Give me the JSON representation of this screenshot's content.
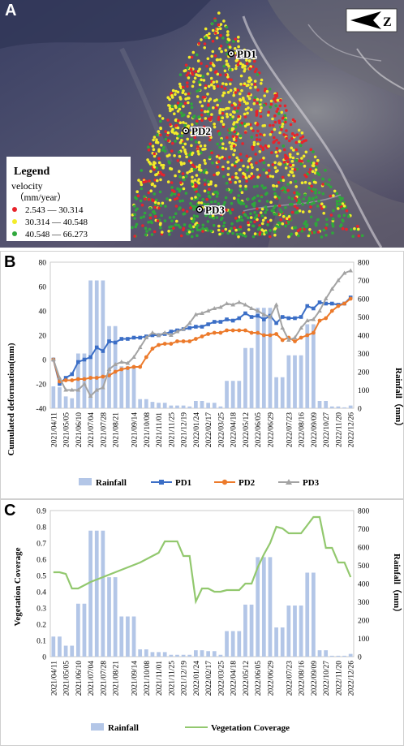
{
  "panels": {
    "a": {
      "letter": "A"
    },
    "b": {
      "letter": "B"
    },
    "c": {
      "letter": "C"
    }
  },
  "map": {
    "north_symbol": "Z",
    "points": [
      "PD1",
      "PD2",
      "PD3"
    ],
    "legend": {
      "title": "Legend",
      "subtitle1": "velocity",
      "subtitle2": "（mm/year）",
      "classes": [
        {
          "label": "2.543 — 30.314",
          "color": "#e8232b"
        },
        {
          "label": "30.314 — 40.548",
          "color": "#f3ec2a"
        },
        {
          "label": "40.548 — 66.273",
          "color": "#2fa83c"
        }
      ]
    }
  },
  "chart_data": [
    {
      "type": "bar+line",
      "ylabel": "Cumulated deformation(mm)",
      "y2label": "Rainfall（mm）",
      "ylim": [
        -40,
        80
      ],
      "y2lim": [
        0,
        800
      ],
      "yticks": [
        -40,
        -20,
        0,
        20,
        40,
        60,
        80
      ],
      "y2ticks": [
        0,
        100,
        200,
        300,
        400,
        500,
        600,
        700,
        800
      ],
      "xtick_labels": [
        "2021/04/11",
        "2021/05/05",
        "2021/06/10",
        "2021/07/04",
        "2021/07/28",
        "2021/08/21",
        "2021/09/14",
        "2021/10/08",
        "2021/11/01",
        "2021/11/25",
        "2021/12/19",
        "2022/01/24",
        "2022/02/17",
        "2022/03/25",
        "2022/04/18",
        "2022/05/12",
        "2022/06/05",
        "2022/06/29",
        "2022/07/23",
        "2022/08/16",
        "2022/09/09",
        "2022/10/27",
        "2022/11/20",
        "2022/12/26"
      ],
      "n_points": 49,
      "rainfall": [
        120,
        115,
        65,
        55,
        300,
        300,
        700,
        700,
        700,
        450,
        450,
        230,
        230,
        230,
        50,
        50,
        35,
        30,
        30,
        15,
        15,
        15,
        10,
        40,
        40,
        30,
        30,
        10,
        150,
        150,
        150,
        330,
        330,
        550,
        550,
        550,
        170,
        170,
        290,
        290,
        290,
        460,
        460,
        40,
        40,
        10,
        10,
        5,
        15
      ],
      "series": [
        {
          "name": "PD1",
          "color": "#3b6ec6",
          "marker": "square",
          "values": [
            0,
            -20,
            -15,
            -12,
            -2,
            0,
            2,
            10,
            7,
            15,
            14,
            17,
            17,
            18,
            18,
            19,
            20,
            20,
            21,
            23,
            24,
            25,
            26,
            27,
            27,
            29,
            31,
            31,
            33,
            32,
            34,
            38,
            35,
            36,
            33,
            36,
            30,
            35,
            34,
            34,
            35,
            44,
            42,
            47,
            46,
            46,
            45,
            46,
            51
          ]
        },
        {
          "name": "PD2",
          "color": "#ec7a2b",
          "marker": "circle",
          "values": [
            0,
            -18,
            -17,
            -17,
            -16,
            -16,
            -15,
            -15,
            -14,
            -13,
            -10,
            -8,
            -7,
            -6,
            -6,
            2,
            9,
            12,
            13,
            13,
            15,
            15,
            15,
            17,
            19,
            21,
            22,
            22,
            24,
            24,
            24,
            24,
            22,
            22,
            20,
            20,
            21,
            16,
            18,
            15,
            18,
            20,
            22,
            32,
            34,
            40,
            44,
            46,
            50
          ]
        },
        {
          "name": "PD3",
          "color": "#a3a3a3",
          "marker": "triangle",
          "values": [
            0,
            -15,
            -25,
            -25,
            -25,
            -20,
            -30,
            -25,
            -23,
            -8,
            -4,
            -2,
            -3,
            2,
            10,
            18,
            22,
            20,
            22,
            20,
            23,
            25,
            30,
            37,
            38,
            40,
            42,
            43,
            46,
            45,
            47,
            45,
            42,
            40,
            37,
            35,
            45,
            26,
            16,
            18,
            26,
            32,
            33,
            40,
            50,
            58,
            65,
            71,
            73
          ]
        }
      ],
      "legend": [
        "Rainfall",
        "PD1",
        "PD2",
        "PD3"
      ]
    },
    {
      "type": "bar+line",
      "ylabel": "Vegetation Coverage",
      "y2label": "Rainfall（mm）",
      "ylim": [
        0,
        0.9
      ],
      "y2lim": [
        0,
        800
      ],
      "yticks": [
        "0",
        "0.1",
        "0.2",
        "0.3",
        "0.4",
        "0.5",
        "0.6",
        "0.7",
        "0.8",
        "0.9"
      ],
      "y2ticks": [
        0,
        100,
        200,
        300,
        400,
        500,
        600,
        700,
        800
      ],
      "rainfall": [
        110,
        110,
        60,
        60,
        290,
        290,
        690,
        690,
        690,
        435,
        435,
        220,
        220,
        220,
        40,
        40,
        25,
        25,
        25,
        10,
        10,
        10,
        10,
        35,
        35,
        30,
        30,
        10,
        140,
        140,
        140,
        285,
        285,
        545,
        545,
        545,
        160,
        160,
        280,
        280,
        280,
        460,
        460,
        35,
        35,
        5,
        5,
        5,
        15
      ],
      "vegetation": {
        "name": "Vegetation Coverage",
        "color": "#92c86e",
        "points": [
          [
            0,
            0.52
          ],
          [
            1,
            0.52
          ],
          [
            2,
            0.51
          ],
          [
            3,
            0.42
          ],
          [
            4,
            0.42
          ],
          [
            5,
            0.44
          ],
          [
            6,
            0.46
          ],
          [
            8,
            0.49
          ],
          [
            10,
            0.52
          ],
          [
            12,
            0.55
          ],
          [
            14,
            0.58
          ],
          [
            16,
            0.62
          ],
          [
            17,
            0.64
          ],
          [
            18,
            0.71
          ],
          [
            19,
            0.71
          ],
          [
            20,
            0.71
          ],
          [
            21,
            0.62
          ],
          [
            22,
            0.62
          ],
          [
            23,
            0.34
          ],
          [
            24,
            0.42
          ],
          [
            25,
            0.42
          ],
          [
            26,
            0.4
          ],
          [
            27,
            0.4
          ],
          [
            28,
            0.41
          ],
          [
            29,
            0.41
          ],
          [
            30,
            0.41
          ],
          [
            31,
            0.45
          ],
          [
            32,
            0.45
          ],
          [
            33,
            0.55
          ],
          [
            34,
            0.63
          ],
          [
            35,
            0.7
          ],
          [
            36,
            0.8
          ],
          [
            37,
            0.79
          ],
          [
            38,
            0.76
          ],
          [
            39,
            0.76
          ],
          [
            40,
            0.76
          ],
          [
            41,
            0.81
          ],
          [
            42,
            0.86
          ],
          [
            43,
            0.86
          ],
          [
            44,
            0.67
          ],
          [
            45,
            0.67
          ],
          [
            46,
            0.58
          ],
          [
            47,
            0.58
          ],
          [
            48,
            0.49
          ]
        ]
      },
      "legend": [
        "Rainfall",
        "Vegetation Coverage"
      ]
    }
  ]
}
